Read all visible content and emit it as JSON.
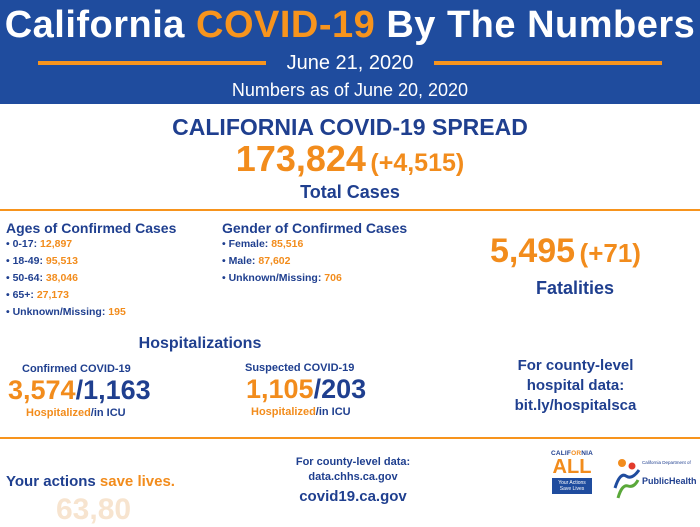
{
  "header": {
    "title_part1": "California ",
    "title_highlight": "COVID-19",
    "title_part2": " By The Numbers",
    "date": "June 21, 2020",
    "as_of": "Numbers as of June 20, 2020"
  },
  "spread": {
    "title": "CALIFORNIA COVID-19 SPREAD",
    "total_cases": "173,824",
    "total_increase": "(+4,515)",
    "total_label": "Total Cases"
  },
  "ages": {
    "title": "Ages of Confirmed Cases",
    "items": [
      {
        "label": "• 0-17: ",
        "value": "12,897"
      },
      {
        "label": "• 18-49: ",
        "value": "95,513"
      },
      {
        "label": "• 50-64: ",
        "value": "38,046"
      },
      {
        "label": "• 65+: ",
        "value": "27,173"
      },
      {
        "label": "• Unknown/Missing: ",
        "value": "195"
      }
    ]
  },
  "gender": {
    "title": "Gender of Confirmed Cases",
    "items": [
      {
        "label": "• Female: ",
        "value": "85,516"
      },
      {
        "label": "• Male: ",
        "value": "87,602"
      },
      {
        "label": "• Unknown/Missing: ",
        "value": "706"
      }
    ]
  },
  "fatalities": {
    "value": "5,495",
    "increase": "(+71)",
    "label": "Fatalities"
  },
  "hospitalizations": {
    "title": "Hospitalizations",
    "confirmed": {
      "label": "Confirmed COVID-19",
      "hospitalized": "3,574",
      "icu": "1,163",
      "caption_a": "Hospitalized",
      "caption_b": "/in ICU"
    },
    "suspected": {
      "label": "Suspected COVID-19",
      "hospitalized": "1,105",
      "icu": "203",
      "caption_a": "Hospitalized",
      "caption_b": "/in ICU"
    },
    "slash": "/",
    "county_line1": "For county-level",
    "county_line2": "hospital data:",
    "county_line3": "bit.ly/hospitalsca"
  },
  "footer": {
    "actions_a": "Your actions ",
    "actions_b": "save lives.",
    "ghost_number": "63,80",
    "county_data_line1": "For county-level data:",
    "county_data_line2": "data.chhs.ca.gov",
    "site": "covid19.ca.gov"
  },
  "logos": {
    "ca_a": "CALIF",
    "ca_b": "OR",
    "ca_c": "NIA",
    "all": "ALL",
    "all_box": "Your Actions Save Lives",
    "dept": "California Department of",
    "public_health": "PublicHealth"
  },
  "colors": {
    "navy": "#1f3f8f",
    "header_blue": "#1f4c9e",
    "orange": "#f28c1c"
  }
}
